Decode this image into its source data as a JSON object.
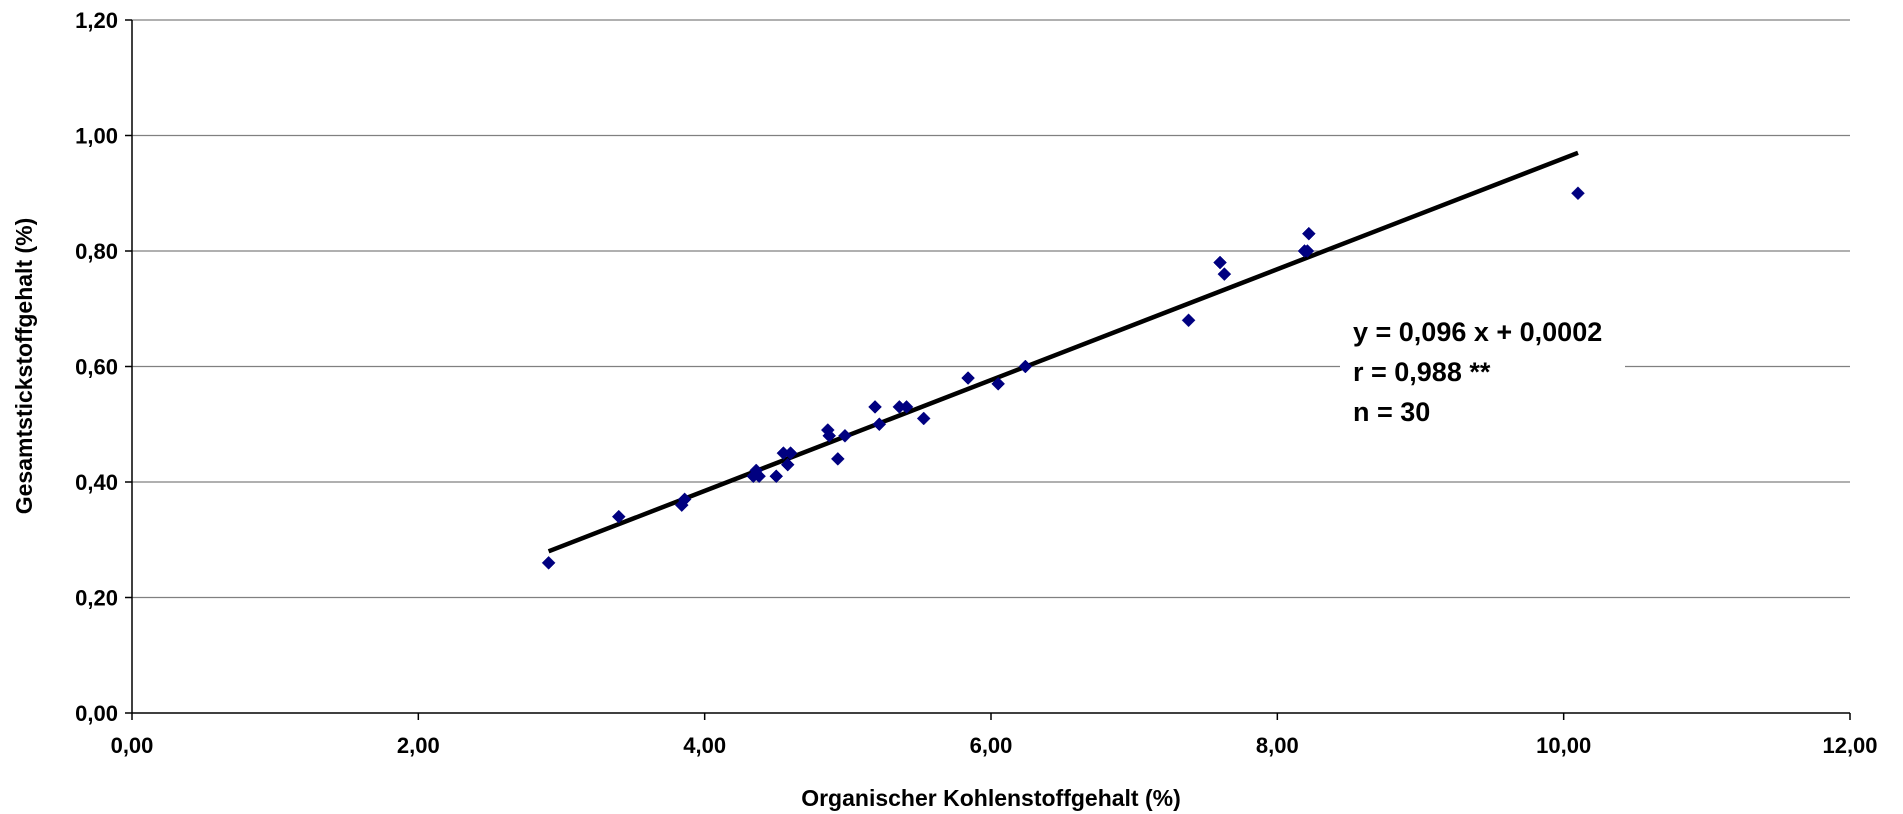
{
  "chart_data": {
    "type": "scatter",
    "xlabel": "Organischer Kohlenstoffgehalt (%)",
    "ylabel": "Gesamtstickstoffgehalt (%)",
    "xlim": [
      0,
      12
    ],
    "ylim": [
      0,
      1.2
    ],
    "x_ticks": [
      "0,00",
      "2,00",
      "4,00",
      "6,00",
      "8,00",
      "10,00",
      "12,00"
    ],
    "y_ticks": [
      "0,00",
      "0,20",
      "0,40",
      "0,60",
      "0,80",
      "1,00",
      "1,20"
    ],
    "grid": "horizontal",
    "marker_color": "#000080",
    "trendline_color": "#000000",
    "points": [
      {
        "x": 2.91,
        "y": 0.26
      },
      {
        "x": 3.4,
        "y": 0.34
      },
      {
        "x": 3.84,
        "y": 0.36
      },
      {
        "x": 3.86,
        "y": 0.37
      },
      {
        "x": 4.34,
        "y": 0.41
      },
      {
        "x": 4.36,
        "y": 0.42
      },
      {
        "x": 4.38,
        "y": 0.41
      },
      {
        "x": 4.5,
        "y": 0.41
      },
      {
        "x": 4.55,
        "y": 0.45
      },
      {
        "x": 4.58,
        "y": 0.43
      },
      {
        "x": 4.6,
        "y": 0.45
      },
      {
        "x": 4.86,
        "y": 0.49
      },
      {
        "x": 4.87,
        "y": 0.48
      },
      {
        "x": 4.93,
        "y": 0.44
      },
      {
        "x": 4.98,
        "y": 0.48
      },
      {
        "x": 5.19,
        "y": 0.53
      },
      {
        "x": 5.22,
        "y": 0.5
      },
      {
        "x": 5.36,
        "y": 0.53
      },
      {
        "x": 5.41,
        "y": 0.53
      },
      {
        "x": 5.53,
        "y": 0.51
      },
      {
        "x": 5.84,
        "y": 0.58
      },
      {
        "x": 6.05,
        "y": 0.57
      },
      {
        "x": 6.24,
        "y": 0.6
      },
      {
        "x": 7.38,
        "y": 0.68
      },
      {
        "x": 7.6,
        "y": 0.78
      },
      {
        "x": 7.63,
        "y": 0.76
      },
      {
        "x": 8.19,
        "y": 0.8
      },
      {
        "x": 8.21,
        "y": 0.8
      },
      {
        "x": 8.22,
        "y": 0.83
      },
      {
        "x": 10.1,
        "y": 0.9
      }
    ],
    "trendline": {
      "x": [
        2.91,
        10.1
      ],
      "y": [
        0.28,
        0.97
      ]
    },
    "annotations": [
      "y = 0,096 x + 0,0002",
      "r = 0,988 **",
      "n = 30"
    ]
  }
}
